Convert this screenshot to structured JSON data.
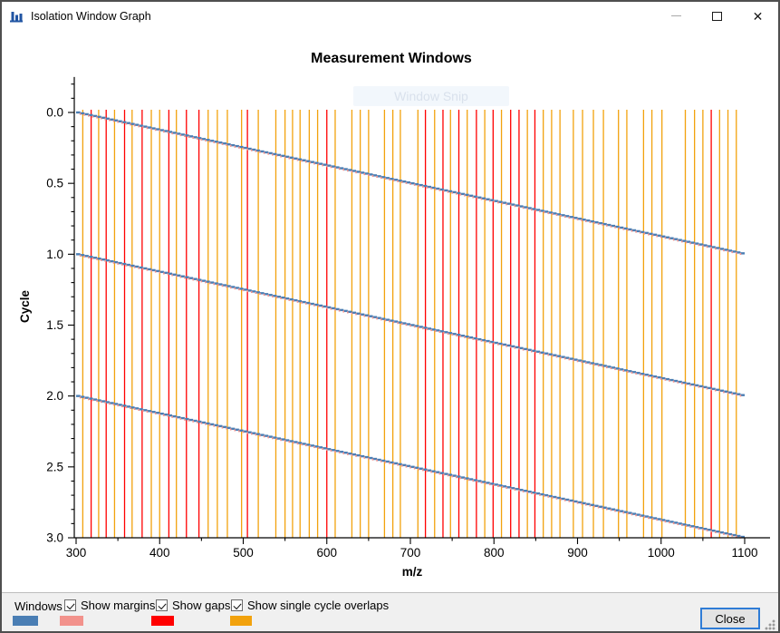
{
  "window": {
    "title": "Isolation Window Graph"
  },
  "ghost_overlay": {
    "label": "Window Snip"
  },
  "chart_data": {
    "type": "line",
    "title": "Measurement Windows",
    "xlabel": "m/z",
    "ylabel": "Cycle",
    "xlim": [
      300,
      1100
    ],
    "ylim": [
      0,
      3
    ],
    "y_inverted": true,
    "grid": false,
    "x_major_ticks": [
      300,
      400,
      500,
      600,
      700,
      800,
      900,
      1000,
      1100
    ],
    "x_minor_tick_step": 50,
    "y_major_ticks": [
      0.0,
      0.5,
      1.0,
      1.5,
      2.0,
      2.5,
      3.0
    ],
    "y_minor_tick_step": 0.1,
    "windows_series": {
      "name": "Windows",
      "color": "#4A7EB4",
      "margin_color": "#F2928C",
      "cycle_starts": [
        0,
        1,
        2
      ],
      "mz_start": 300,
      "mz_end": 1100,
      "window_width_mz": 5,
      "cycles_per_sweep": 1
    },
    "boundary_lines": {
      "colors": {
        "gap": "#FF0000",
        "single_cycle_overlap": "#F2A20D"
      },
      "lines": [
        [
          308,
          "o"
        ],
        [
          318,
          "g"
        ],
        [
          327,
          "o"
        ],
        [
          336,
          "g"
        ],
        [
          346,
          "o"
        ],
        [
          358,
          "g"
        ],
        [
          367,
          "o"
        ],
        [
          379,
          "g"
        ],
        [
          390,
          "o"
        ],
        [
          400,
          "o"
        ],
        [
          411,
          "g"
        ],
        [
          420,
          "o"
        ],
        [
          432,
          "g"
        ],
        [
          447,
          "g"
        ],
        [
          458,
          "o"
        ],
        [
          469,
          "o"
        ],
        [
          481,
          "o"
        ],
        [
          498,
          "o"
        ],
        [
          505,
          "g"
        ],
        [
          518,
          "o"
        ],
        [
          539,
          "o"
        ],
        [
          550,
          "o"
        ],
        [
          559,
          "o"
        ],
        [
          568,
          "o"
        ],
        [
          579,
          "o"
        ],
        [
          589,
          "o"
        ],
        [
          600,
          "g"
        ],
        [
          610,
          "o"
        ],
        [
          630,
          "o"
        ],
        [
          640,
          "o"
        ],
        [
          650,
          "o"
        ],
        [
          669,
          "o"
        ],
        [
          679,
          "o"
        ],
        [
          688,
          "o"
        ],
        [
          709,
          "o"
        ],
        [
          718,
          "g"
        ],
        [
          729,
          "o"
        ],
        [
          739,
          "g"
        ],
        [
          748,
          "o"
        ],
        [
          758,
          "g"
        ],
        [
          768,
          "o"
        ],
        [
          779,
          "g"
        ],
        [
          789,
          "o"
        ],
        [
          799,
          "g"
        ],
        [
          809,
          "o"
        ],
        [
          820,
          "g"
        ],
        [
          830,
          "g"
        ],
        [
          840,
          "o"
        ],
        [
          849,
          "g"
        ],
        [
          859,
          "o"
        ],
        [
          869,
          "o"
        ],
        [
          879,
          "o"
        ],
        [
          895,
          "o"
        ],
        [
          906,
          "o"
        ],
        [
          919,
          "o"
        ],
        [
          931,
          "o"
        ],
        [
          949,
          "o"
        ],
        [
          959,
          "o"
        ],
        [
          979,
          "o"
        ],
        [
          989,
          "o"
        ],
        [
          1001,
          "o"
        ],
        [
          1029,
          "o"
        ],
        [
          1040,
          "o"
        ],
        [
          1050,
          "o"
        ],
        [
          1060,
          "g"
        ],
        [
          1070,
          "o"
        ],
        [
          1080,
          "o"
        ],
        [
          1090,
          "o"
        ]
      ]
    }
  },
  "legend": {
    "windows_label": "Windows",
    "windows_color": "#4A7EB4",
    "margins_color": "#F2928C",
    "gaps_color": "#FF0000",
    "overlaps_color": "#F2A20D"
  },
  "controls": {
    "checkboxes": [
      {
        "label": "Show margins",
        "checked": true
      },
      {
        "label": "Show gaps",
        "checked": true
      },
      {
        "label": "Show single cycle overlaps",
        "checked": true
      }
    ],
    "close_button": "Close"
  }
}
